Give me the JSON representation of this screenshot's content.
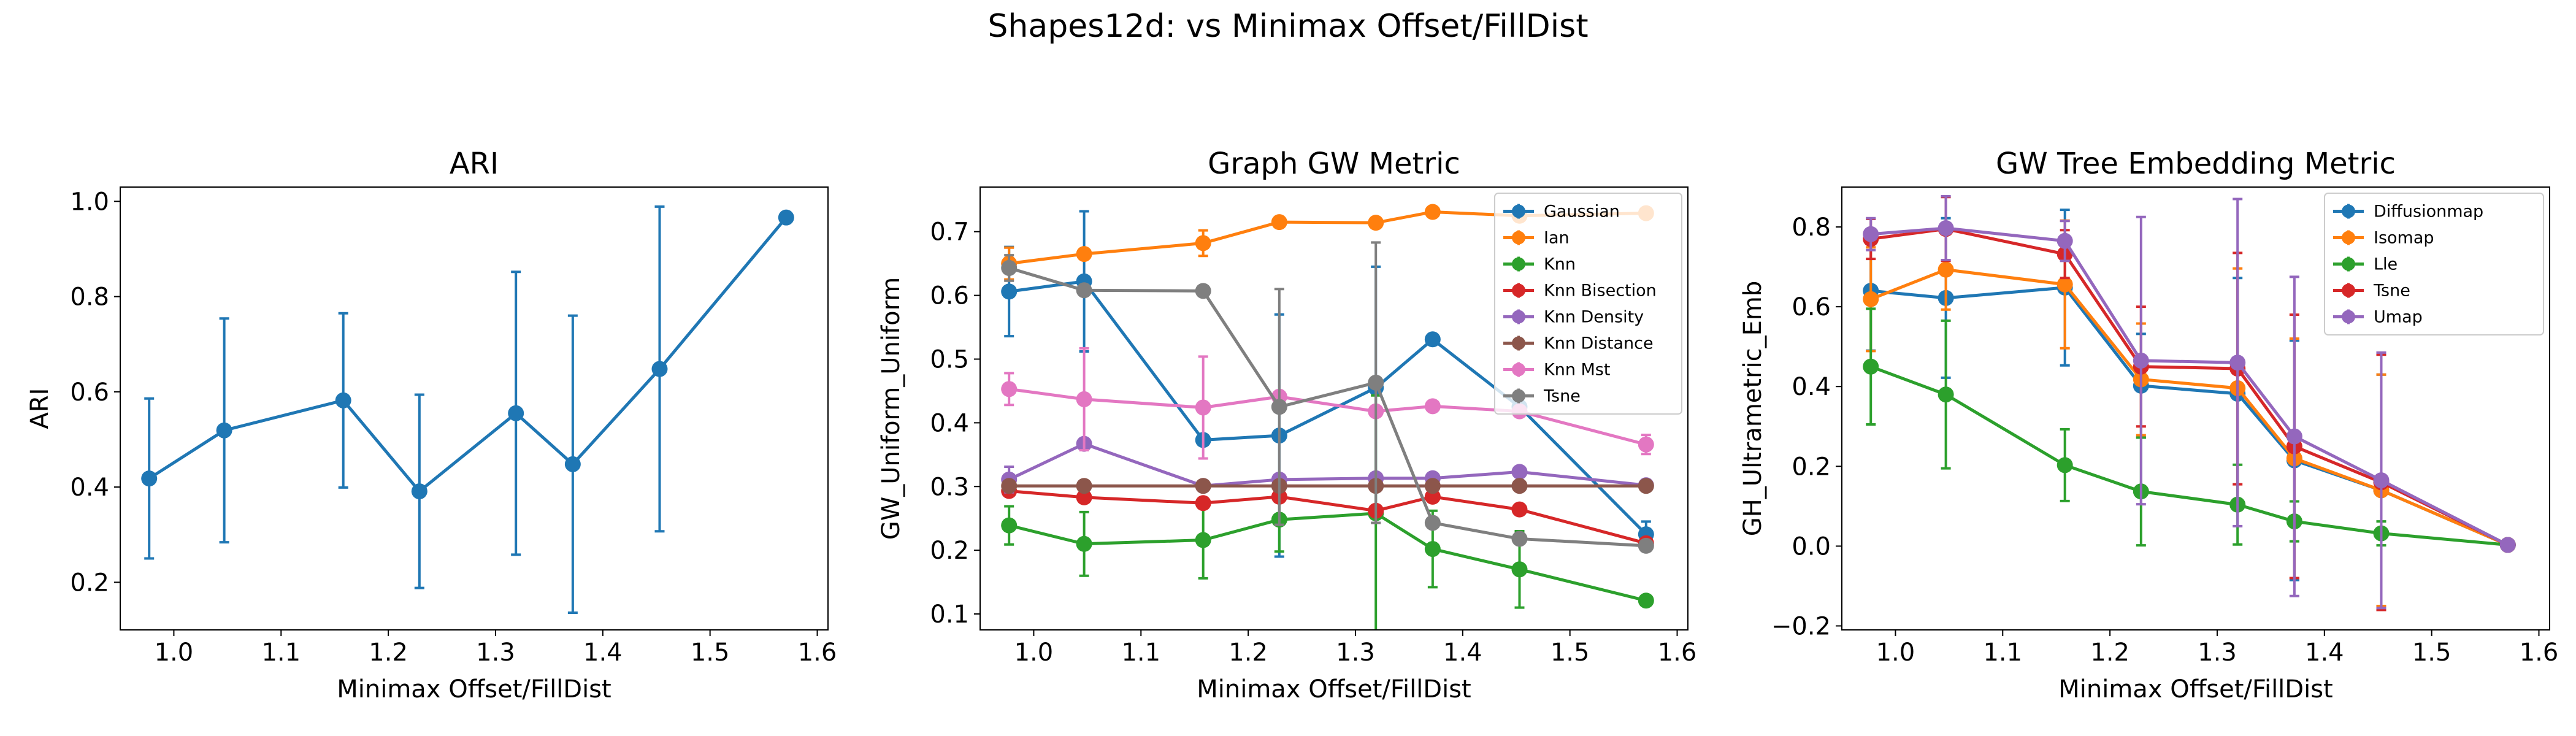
{
  "figure": {
    "suptitle": "Shapes12d: vs Minimax Offset/FillDist"
  },
  "chart_data": [
    {
      "type": "line",
      "title": "ARI",
      "xlabel": "Minimax Offset/FillDist",
      "ylabel": "ARI",
      "xlim": [
        0.95,
        1.61
      ],
      "ylim": [
        0.1,
        1.03
      ],
      "xticks": [
        "1.0",
        "1.1",
        "1.2",
        "1.3",
        "1.4",
        "1.5",
        "1.6"
      ],
      "yticks": [
        "0.2",
        "0.4",
        "0.6",
        "0.8",
        "1.0"
      ],
      "legend": "none",
      "grid": false,
      "series": [
        {
          "color": "#1f77b4",
          "x": [
            0.977,
            1.047,
            1.158,
            1.229,
            1.319,
            1.372,
            1.453,
            1.571
          ],
          "y": [
            0.418,
            0.519,
            0.582,
            0.391,
            0.555,
            0.448,
            0.648,
            0.966
          ],
          "err": [
            0.168,
            0.235,
            0.183,
            0.203,
            0.297,
            0.312,
            0.341,
            0.0
          ]
        }
      ]
    },
    {
      "type": "line",
      "title": "Graph GW Metric",
      "xlabel": "Minimax Offset/FillDist",
      "ylabel": "GW_Uniform_Uniform",
      "xlim": [
        0.95,
        1.61
      ],
      "ylim": [
        0.075,
        0.77
      ],
      "xticks": [
        "1.0",
        "1.1",
        "1.2",
        "1.3",
        "1.4",
        "1.5",
        "1.6"
      ],
      "yticks": [
        "0.1",
        "0.2",
        "0.3",
        "0.4",
        "0.5",
        "0.6",
        "0.7"
      ],
      "legend": "top-right",
      "grid": false,
      "series": [
        {
          "name": "Gaussian",
          "color": "#1f77b4",
          "x": [
            0.977,
            1.047,
            1.158,
            1.229,
            1.319,
            1.372,
            1.453,
            1.571
          ],
          "y": [
            0.606,
            0.622,
            0.373,
            0.38,
            0.455,
            0.531,
            0.425,
            0.225
          ],
          "err": [
            0.07,
            0.11,
            0.0,
            0.19,
            0.19,
            0.0,
            0.0,
            0.02
          ]
        },
        {
          "name": "Ian",
          "color": "#ff7f0e",
          "x": [
            0.977,
            1.047,
            1.158,
            1.229,
            1.319,
            1.372,
            1.453,
            1.571
          ],
          "y": [
            0.65,
            0.665,
            0.682,
            0.715,
            0.714,
            0.731,
            0.725,
            0.729
          ],
          "err": [
            0.025,
            0.0,
            0.02,
            0.0,
            0.0,
            0.0,
            0.0,
            0.0
          ]
        },
        {
          "name": "Knn",
          "color": "#2ca02c",
          "x": [
            0.977,
            1.047,
            1.158,
            1.229,
            1.319,
            1.372,
            1.453,
            1.571
          ],
          "y": [
            0.239,
            0.21,
            0.216,
            0.248,
            0.258,
            0.202,
            0.17,
            0.121
          ],
          "err": [
            0.03,
            0.05,
            0.06,
            0.05,
            0.185,
            0.06,
            0.06,
            0.0
          ]
        },
        {
          "name": "Knn Bisection",
          "color": "#d62728",
          "x": [
            0.977,
            1.047,
            1.158,
            1.229,
            1.319,
            1.372,
            1.453,
            1.571
          ],
          "y": [
            0.293,
            0.283,
            0.274,
            0.284,
            0.262,
            0.284,
            0.264,
            0.211
          ],
          "err": [
            0.0,
            0.0,
            0.0,
            0.0,
            0.0,
            0.0,
            0.0,
            0.0
          ]
        },
        {
          "name": "Knn Density",
          "color": "#9467bd",
          "x": [
            0.977,
            1.047,
            1.158,
            1.229,
            1.319,
            1.372,
            1.453,
            1.571
          ],
          "y": [
            0.311,
            0.367,
            0.301,
            0.311,
            0.313,
            0.313,
            0.323,
            0.302
          ],
          "err": [
            0.02,
            0.0,
            0.0,
            0.0,
            0.0,
            0.0,
            0.0,
            0.0
          ]
        },
        {
          "name": "Knn Distance",
          "color": "#8c564b",
          "x": [
            0.977,
            1.047,
            1.158,
            1.229,
            1.319,
            1.372,
            1.453,
            1.571
          ],
          "y": [
            0.301,
            0.301,
            0.301,
            0.301,
            0.301,
            0.301,
            0.301,
            0.301
          ],
          "err": [
            0.0,
            0.0,
            0.0,
            0.0,
            0.0,
            0.0,
            0.0,
            0.0
          ]
        },
        {
          "name": "Knn Mst",
          "color": "#e377c2",
          "x": [
            0.977,
            1.047,
            1.158,
            1.229,
            1.319,
            1.372,
            1.453,
            1.571
          ],
          "y": [
            0.453,
            0.437,
            0.424,
            0.441,
            0.418,
            0.426,
            0.418,
            0.366
          ],
          "err": [
            0.025,
            0.08,
            0.08,
            0.0,
            0.0,
            0.0,
            0.0,
            0.015
          ]
        },
        {
          "name": "Tsne",
          "color": "#7f7f7f",
          "x": [
            0.977,
            1.047,
            1.158,
            1.229,
            1.319,
            1.372,
            1.453,
            1.571
          ],
          "y": [
            0.643,
            0.608,
            0.607,
            0.425,
            0.463,
            0.243,
            0.218,
            0.207
          ],
          "err": [
            0.02,
            0.0,
            0.0,
            0.185,
            0.22,
            0.0,
            0.0,
            0.0
          ]
        }
      ]
    },
    {
      "type": "line",
      "title": "GW Tree Embedding Metric",
      "xlabel": "Minimax Offset/FillDist",
      "ylabel": "GH_Ultrametric_Emb",
      "xlim": [
        0.95,
        1.61
      ],
      "ylim": [
        -0.21,
        0.9
      ],
      "xticks": [
        "1.0",
        "1.1",
        "1.2",
        "1.3",
        "1.4",
        "1.5",
        "1.6"
      ],
      "yticks": [
        "−0.2",
        "0.0",
        "0.2",
        "0.4",
        "0.6",
        "0.8"
      ],
      "legend": "top-right",
      "grid": false,
      "series": [
        {
          "name": "Diffusionmap",
          "color": "#1f77b4",
          "x": [
            0.977,
            1.047,
            1.158,
            1.229,
            1.319,
            1.372,
            1.453,
            1.571
          ],
          "y": [
            0.64,
            0.622,
            0.648,
            0.402,
            0.382,
            0.215,
            0.14,
            0.003
          ],
          "err": [
            0.15,
            0.2,
            0.195,
            0.13,
            0.29,
            0.3,
            0.29,
            0.0
          ]
        },
        {
          "name": "Isomap",
          "color": "#ff7f0e",
          "x": [
            0.977,
            1.047,
            1.158,
            1.229,
            1.319,
            1.372,
            1.453,
            1.571
          ],
          "y": [
            0.619,
            0.693,
            0.656,
            0.418,
            0.396,
            0.22,
            0.14,
            0.003
          ],
          "err": [
            0.13,
            0.1,
            0.16,
            0.14,
            0.3,
            0.3,
            0.29,
            0.0
          ]
        },
        {
          "name": "Lle",
          "color": "#2ca02c",
          "x": [
            0.977,
            1.047,
            1.158,
            1.229,
            1.319,
            1.372,
            1.453,
            1.571
          ],
          "y": [
            0.45,
            0.38,
            0.203,
            0.137,
            0.104,
            0.062,
            0.032,
            0.003
          ],
          "err": [
            0.145,
            0.185,
            0.09,
            0.135,
            0.1,
            0.05,
            0.03,
            0.0
          ]
        },
        {
          "name": "Tsne",
          "color": "#d62728",
          "x": [
            0.977,
            1.047,
            1.158,
            1.229,
            1.319,
            1.372,
            1.453,
            1.571
          ],
          "y": [
            0.77,
            0.795,
            0.732,
            0.45,
            0.445,
            0.25,
            0.16,
            0.003
          ],
          "err": [
            0.05,
            0.08,
            0.06,
            0.15,
            0.29,
            0.33,
            0.32,
            0.0
          ]
        },
        {
          "name": "Umap",
          "color": "#9467bd",
          "x": [
            0.977,
            1.047,
            1.158,
            1.229,
            1.319,
            1.372,
            1.453,
            1.571
          ],
          "y": [
            0.782,
            0.797,
            0.765,
            0.465,
            0.46,
            0.275,
            0.165,
            0.003
          ],
          "err": [
            0.04,
            0.08,
            0.05,
            0.36,
            0.41,
            0.4,
            0.32,
            0.0
          ]
        }
      ]
    }
  ]
}
